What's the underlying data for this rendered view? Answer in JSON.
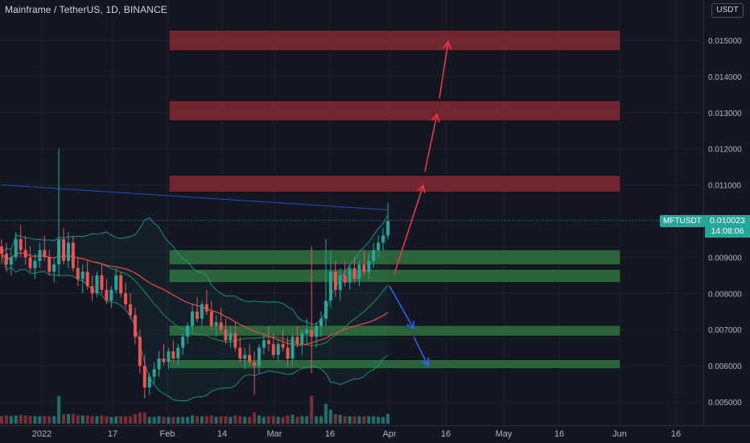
{
  "header": {
    "symbol_line": "Mainframe / TetherUS, 1D, BINANCE",
    "currency_badge": "USDT"
  },
  "last_price": {
    "symbol": "MFTUSDT",
    "price": "0.010023",
    "countdown": "14:08:06"
  },
  "colors": {
    "background": "#131722",
    "grid": "#1e222d",
    "up_candle": "#26a69a",
    "down_candle": "#ef5350",
    "resistance_zone": "#7a2731",
    "support_zone": "#2e6a3d",
    "ma_red": "#e04848",
    "ma_blue": "#2962ff",
    "bollinger": "#26a69a",
    "arrow_up": "#f23645",
    "arrow_down": "#2962ff"
  },
  "chart_data": {
    "type": "candlestick",
    "title": "Mainframe / TetherUS, 1D, BINANCE",
    "y_ticks": [
      "0.015000",
      "0.014000",
      "0.013000",
      "0.012000",
      "0.011000",
      "0.009000",
      "0.008000",
      "0.007000",
      "0.006000",
      "0.005000"
    ],
    "x_ticks": [
      "2022",
      "17",
      "Feb",
      "14",
      "Mar",
      "16",
      "Apr",
      "16",
      "May",
      "16",
      "Jun",
      "16"
    ],
    "ylim": [
      0.0045,
      0.0161
    ],
    "zones": [
      {
        "kind": "resistance",
        "from": 0.01471,
        "to": 0.01528
      },
      {
        "kind": "resistance",
        "from": 0.01277,
        "to": 0.01333
      },
      {
        "kind": "resistance",
        "from": 0.0108,
        "to": 0.01127
      },
      {
        "kind": "support",
        "from": 0.00879,
        "to": 0.00921
      },
      {
        "kind": "support",
        "from": 0.0083,
        "to": 0.00867
      },
      {
        "kind": "support",
        "from": 0.00682,
        "to": 0.00712
      },
      {
        "kind": "support",
        "from": 0.00592,
        "to": 0.00617
      }
    ],
    "last_price": 0.010023,
    "candles_ohlc": [
      [
        0.0093,
        0.0095,
        0.0088,
        0.0091
      ],
      [
        0.0091,
        0.0094,
        0.0086,
        0.0088
      ],
      [
        0.0088,
        0.0092,
        0.0085,
        0.009
      ],
      [
        0.009,
        0.0097,
        0.0089,
        0.0095
      ],
      [
        0.0095,
        0.0099,
        0.009,
        0.0092
      ],
      [
        0.0092,
        0.0096,
        0.0088,
        0.009
      ],
      [
        0.009,
        0.0093,
        0.0086,
        0.0087
      ],
      [
        0.0087,
        0.0091,
        0.0084,
        0.0089
      ],
      [
        0.0089,
        0.0094,
        0.0087,
        0.0092
      ],
      [
        0.0092,
        0.0096,
        0.0089,
        0.009
      ],
      [
        0.009,
        0.0092,
        0.0085,
        0.0086
      ],
      [
        0.0086,
        0.009,
        0.0083,
        0.0088
      ],
      [
        0.0088,
        0.012,
        0.0085,
        0.0095
      ],
      [
        0.0095,
        0.0098,
        0.0088,
        0.0089
      ],
      [
        0.0089,
        0.0097,
        0.0087,
        0.0094
      ],
      [
        0.0094,
        0.0096,
        0.0086,
        0.0087
      ],
      [
        0.0087,
        0.009,
        0.0082,
        0.0084
      ],
      [
        0.0084,
        0.0088,
        0.008,
        0.0086
      ],
      [
        0.0086,
        0.0089,
        0.0081,
        0.0082
      ],
      [
        0.0082,
        0.0085,
        0.0078,
        0.008
      ],
      [
        0.008,
        0.0086,
        0.0079,
        0.0085
      ],
      [
        0.0085,
        0.0088,
        0.008,
        0.0081
      ],
      [
        0.0081,
        0.0084,
        0.0077,
        0.0078
      ],
      [
        0.0078,
        0.0082,
        0.0076,
        0.0081
      ],
      [
        0.0081,
        0.0087,
        0.008,
        0.0085
      ],
      [
        0.0085,
        0.0086,
        0.0079,
        0.008
      ],
      [
        0.008,
        0.0083,
        0.0076,
        0.0077
      ],
      [
        0.0077,
        0.008,
        0.0073,
        0.0074
      ],
      [
        0.0074,
        0.0076,
        0.0066,
        0.0068
      ],
      [
        0.0068,
        0.007,
        0.0058,
        0.006
      ],
      [
        0.006,
        0.0063,
        0.0051,
        0.0054
      ],
      [
        0.0054,
        0.0058,
        0.0052,
        0.0057
      ],
      [
        0.0057,
        0.0061,
        0.0055,
        0.0059
      ],
      [
        0.0059,
        0.0064,
        0.0057,
        0.0062
      ],
      [
        0.0062,
        0.0066,
        0.006,
        0.0061
      ],
      [
        0.0061,
        0.0065,
        0.0059,
        0.0064
      ],
      [
        0.0064,
        0.0067,
        0.0061,
        0.0062
      ],
      [
        0.0062,
        0.0066,
        0.006,
        0.0065
      ],
      [
        0.0065,
        0.0069,
        0.0063,
        0.0068
      ],
      [
        0.0068,
        0.0072,
        0.0066,
        0.0071
      ],
      [
        0.0071,
        0.0077,
        0.0069,
        0.0075
      ],
      [
        0.0075,
        0.0079,
        0.0072,
        0.0073
      ],
      [
        0.0073,
        0.0078,
        0.0071,
        0.0077
      ],
      [
        0.0077,
        0.0081,
        0.0074,
        0.0075
      ],
      [
        0.0075,
        0.0078,
        0.007,
        0.0071
      ],
      [
        0.0071,
        0.0074,
        0.0068,
        0.0072
      ],
      [
        0.0072,
        0.0076,
        0.0069,
        0.007
      ],
      [
        0.007,
        0.0073,
        0.0066,
        0.0067
      ],
      [
        0.0067,
        0.0071,
        0.0065,
        0.0069
      ],
      [
        0.0069,
        0.0072,
        0.0064,
        0.0065
      ],
      [
        0.0065,
        0.0068,
        0.0061,
        0.0062
      ],
      [
        0.0062,
        0.0065,
        0.0059,
        0.0063
      ],
      [
        0.0063,
        0.0066,
        0.006,
        0.0061
      ],
      [
        0.0061,
        0.0064,
        0.0052,
        0.006
      ],
      [
        0.006,
        0.0066,
        0.0058,
        0.0065
      ],
      [
        0.0065,
        0.0069,
        0.0063,
        0.0067
      ],
      [
        0.0067,
        0.0071,
        0.0064,
        0.0066
      ],
      [
        0.0066,
        0.0069,
        0.0062,
        0.0063
      ],
      [
        0.0063,
        0.0067,
        0.0061,
        0.0066
      ],
      [
        0.0066,
        0.007,
        0.0064,
        0.0065
      ],
      [
        0.0065,
        0.0068,
        0.006,
        0.0062
      ],
      [
        0.0062,
        0.0069,
        0.006,
        0.0068
      ],
      [
        0.0068,
        0.0071,
        0.0065,
        0.0066
      ],
      [
        0.0066,
        0.007,
        0.0063,
        0.0069
      ],
      [
        0.0069,
        0.0073,
        0.0066,
        0.007
      ],
      [
        0.007,
        0.0093,
        0.0058,
        0.0068
      ],
      [
        0.0068,
        0.0072,
        0.0065,
        0.0071
      ],
      [
        0.0071,
        0.0075,
        0.0068,
        0.0073
      ],
      [
        0.0073,
        0.0095,
        0.0071,
        0.0078
      ],
      [
        0.0078,
        0.0092,
        0.0076,
        0.0086
      ],
      [
        0.0086,
        0.0089,
        0.0079,
        0.0081
      ],
      [
        0.0081,
        0.0087,
        0.0078,
        0.0085
      ],
      [
        0.0085,
        0.0089,
        0.0082,
        0.0083
      ],
      [
        0.0083,
        0.0088,
        0.0081,
        0.0087
      ],
      [
        0.0087,
        0.009,
        0.0083,
        0.0084
      ],
      [
        0.0084,
        0.0089,
        0.0082,
        0.0088
      ],
      [
        0.0088,
        0.0092,
        0.0085,
        0.0086
      ],
      [
        0.0086,
        0.0091,
        0.0084,
        0.0089
      ],
      [
        0.0089,
        0.0094,
        0.0087,
        0.0092
      ],
      [
        0.0092,
        0.0096,
        0.009,
        0.0094
      ],
      [
        0.0094,
        0.0098,
        0.0092,
        0.0096
      ],
      [
        0.0096,
        0.0105,
        0.0095,
        0.01
      ]
    ]
  }
}
